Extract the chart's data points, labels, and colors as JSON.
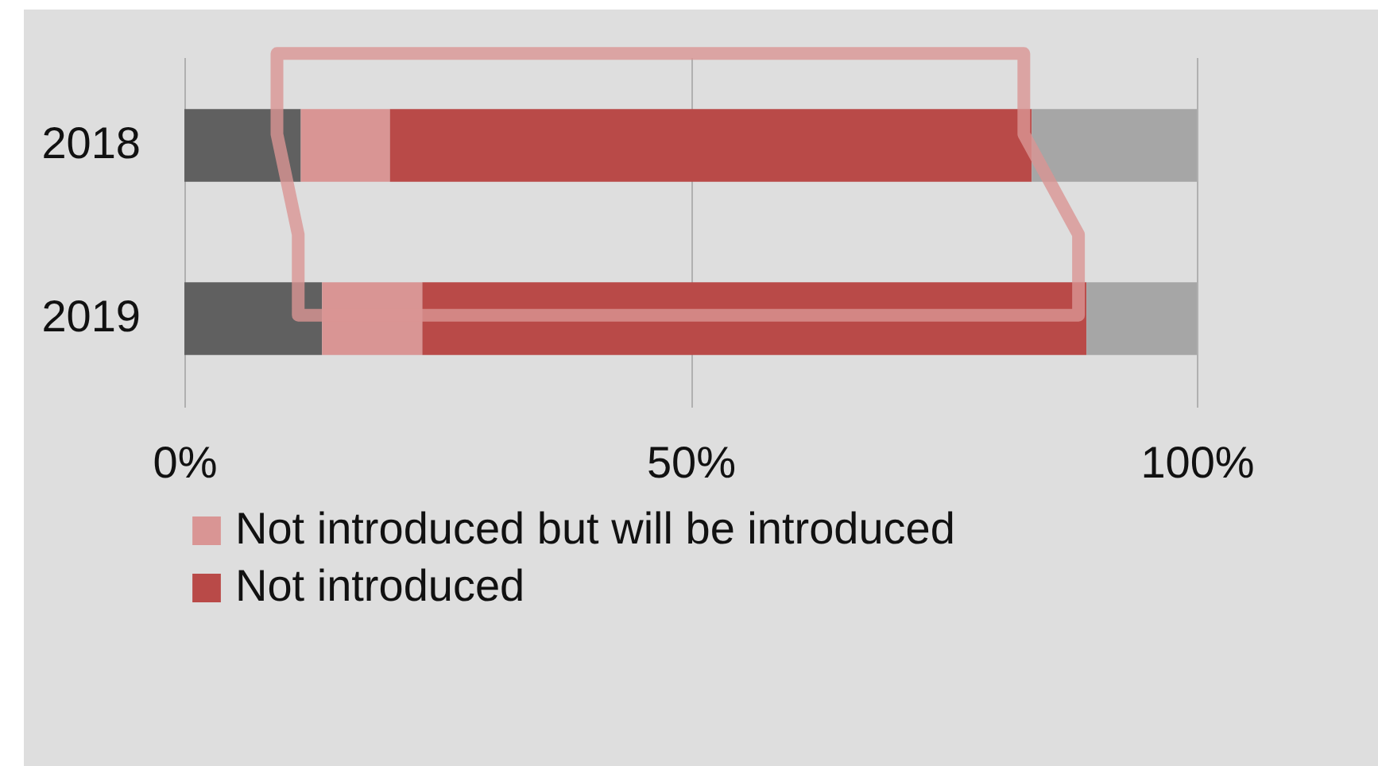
{
  "chart_data": {
    "type": "bar",
    "orientation": "horizontal",
    "stacked": true,
    "categories": [
      "2018",
      "2019"
    ],
    "series": [
      {
        "color": "#606060",
        "values": [
          11.5,
          13.6
        ]
      },
      {
        "name": "Not introduced but will be introduced",
        "color": "#d99594",
        "values": [
          8.8,
          9.9
        ]
      },
      {
        "name": "Not introduced",
        "color": "#b94a48",
        "values": [
          63.4,
          65.6
        ]
      },
      {
        "color": "#a6a6a6",
        "values": [
          16.3,
          10.9
        ]
      }
    ],
    "xlim": [
      0,
      100
    ],
    "xticks": [
      {
        "value": 0,
        "label": "0%"
      },
      {
        "value": 50,
        "label": "50%"
      },
      {
        "value": 100,
        "label": "100%"
      }
    ],
    "grid": "x",
    "legend": "bottom left"
  }
}
